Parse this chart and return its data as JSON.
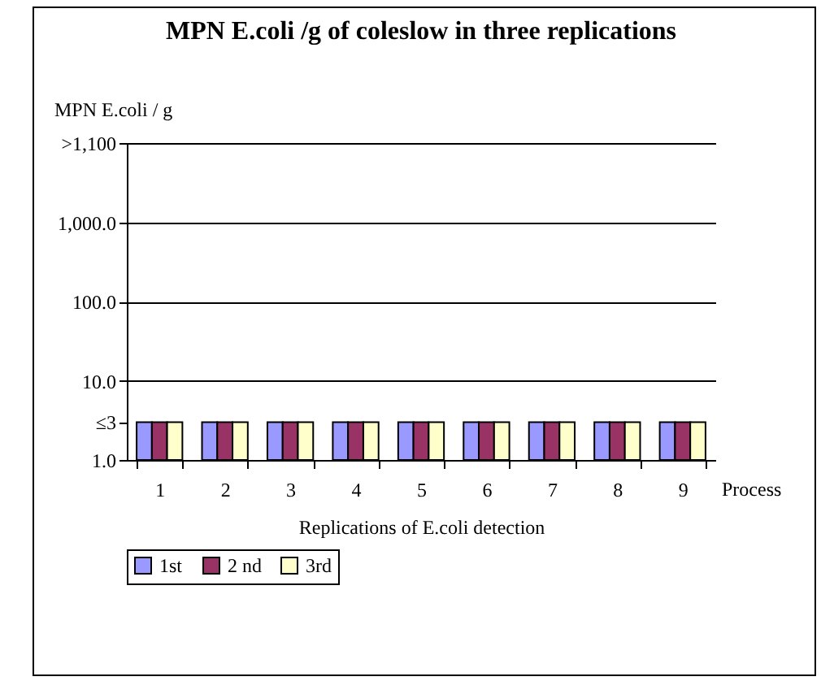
{
  "chart_data": {
    "type": "bar",
    "title": "MPN E.coli /g of coleslow in three replications",
    "xlabel": "Replications of E.coli detection",
    "ylabel": "MPN E.coli / g",
    "categories": [
      "1",
      "2",
      "3",
      "4",
      "5",
      "6",
      "7",
      "8",
      "9"
    ],
    "series": [
      {
        "name": "1st",
        "color": "#9999ff",
        "values": [
          3,
          3,
          3,
          3,
          3,
          3,
          3,
          3,
          3
        ]
      },
      {
        "name": "2 nd",
        "color": "#993366",
        "values": [
          3,
          3,
          3,
          3,
          3,
          3,
          3,
          3,
          3
        ]
      },
      {
        "name": "3rd",
        "color": "#ffffcc",
        "values": [
          3,
          3,
          3,
          3,
          3,
          3,
          3,
          3,
          3
        ]
      }
    ],
    "log": true,
    "ylim": [
      1,
      10000
    ],
    "yticks": [
      {
        "value": 1,
        "label": "1.0"
      },
      {
        "value": 3,
        "label": "≤3"
      },
      {
        "value": 10,
        "label": "10.0"
      },
      {
        "value": 100,
        "label": "100.0"
      },
      {
        "value": 1000,
        "label": "1,000.0"
      },
      {
        "value": 10000,
        "label": ">1,100"
      }
    ],
    "grid": "y",
    "legend": "bottom",
    "annotations": [
      "Process"
    ]
  }
}
